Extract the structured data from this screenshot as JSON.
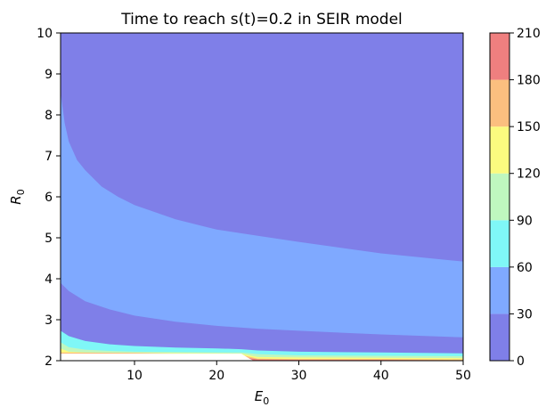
{
  "chart_data": {
    "type": "contourf",
    "title": "Time to reach s(t)=0.2 in SEIR model",
    "xlabel": "E",
    "xlabel_sub": "0",
    "ylabel": "R",
    "ylabel_sub": "0",
    "xlim": [
      1,
      50
    ],
    "ylim": [
      2,
      10
    ],
    "xticks": [
      10,
      20,
      30,
      40,
      50
    ],
    "yticks": [
      2,
      3,
      4,
      5,
      6,
      7,
      8,
      9,
      10
    ],
    "colorbar": {
      "levels": [
        0,
        30,
        60,
        90,
        120,
        150,
        180,
        210
      ],
      "colors": [
        "#7f7fe8",
        "#7fa9ff",
        "#7ff7f7",
        "#bff7bf",
        "#fbfb7f",
        "#fbbf7f",
        "#ef7f7f"
      ]
    },
    "regions": [
      {
        "band": 1,
        "boundary_bottom": [
          [
            1,
            3.9
          ],
          [
            2,
            3.7
          ],
          [
            4,
            3.45
          ],
          [
            7,
            3.25
          ],
          [
            10,
            3.1
          ],
          [
            15,
            2.95
          ],
          [
            20,
            2.85
          ],
          [
            25,
            2.78
          ],
          [
            30,
            2.73
          ],
          [
            40,
            2.64
          ],
          [
            50,
            2.57
          ]
        ],
        "boundary_top": [
          [
            1,
            8.55
          ],
          [
            1.5,
            7.8
          ],
          [
            2,
            7.35
          ],
          [
            3,
            6.9
          ],
          [
            4,
            6.65
          ],
          [
            6,
            6.25
          ],
          [
            8,
            6.0
          ],
          [
            10,
            5.8
          ],
          [
            15,
            5.45
          ],
          [
            20,
            5.2
          ],
          [
            25,
            5.05
          ],
          [
            30,
            4.9
          ],
          [
            40,
            4.62
          ],
          [
            50,
            4.42
          ]
        ]
      },
      {
        "band": 2,
        "boundary_bottom": [
          [
            1,
            2.73
          ],
          [
            2,
            2.6
          ],
          [
            4,
            2.48
          ],
          [
            7,
            2.4
          ],
          [
            10,
            2.36
          ],
          [
            15,
            2.32
          ],
          [
            20,
            2.3
          ],
          [
            23,
            2.28
          ],
          [
            25,
            2.25
          ],
          [
            30,
            2.22
          ],
          [
            40,
            2.2
          ],
          [
            50,
            2.18
          ]
        ]
      },
      {
        "band": 3,
        "boundary_bottom": [
          [
            1,
            2.45
          ],
          [
            2,
            2.33
          ],
          [
            4,
            2.27
          ],
          [
            7,
            2.24
          ],
          [
            10,
            2.22
          ],
          [
            15,
            2.21
          ],
          [
            20,
            2.2
          ],
          [
            23,
            2.2
          ],
          [
            25,
            2.16
          ],
          [
            30,
            2.13
          ],
          [
            40,
            2.12
          ],
          [
            50,
            2.11
          ]
        ]
      },
      {
        "band": 4,
        "boundary_bottom": [
          [
            1,
            2.3
          ],
          [
            2,
            2.22
          ],
          [
            4,
            2.2
          ],
          [
            10,
            2.19
          ],
          [
            20,
            2.18
          ],
          [
            23,
            2.17
          ],
          [
            25,
            2.09
          ],
          [
            30,
            2.08
          ],
          [
            40,
            2.07
          ],
          [
            50,
            2.06
          ]
        ]
      },
      {
        "band": 5,
        "boundary_bottom": [
          [
            1,
            2.2
          ],
          [
            10,
            2.19
          ],
          [
            23,
            2.14
          ],
          [
            25,
            2.05
          ],
          [
            30,
            2.04
          ],
          [
            40,
            2.04
          ],
          [
            50,
            2.03
          ]
        ]
      },
      {
        "band": 6,
        "boundary_bottom": [
          [
            23.5,
            2.08
          ],
          [
            25,
            2.03
          ],
          [
            30,
            2.02
          ],
          [
            40,
            2.02
          ],
          [
            50,
            2.01
          ]
        ]
      }
    ],
    "blank_region": [
      [
        1,
        2.17
      ],
      [
        23,
        2.17
      ],
      [
        24,
        2.05
      ],
      [
        24.5,
        2.0
      ],
      [
        1,
        2.0
      ]
    ]
  }
}
